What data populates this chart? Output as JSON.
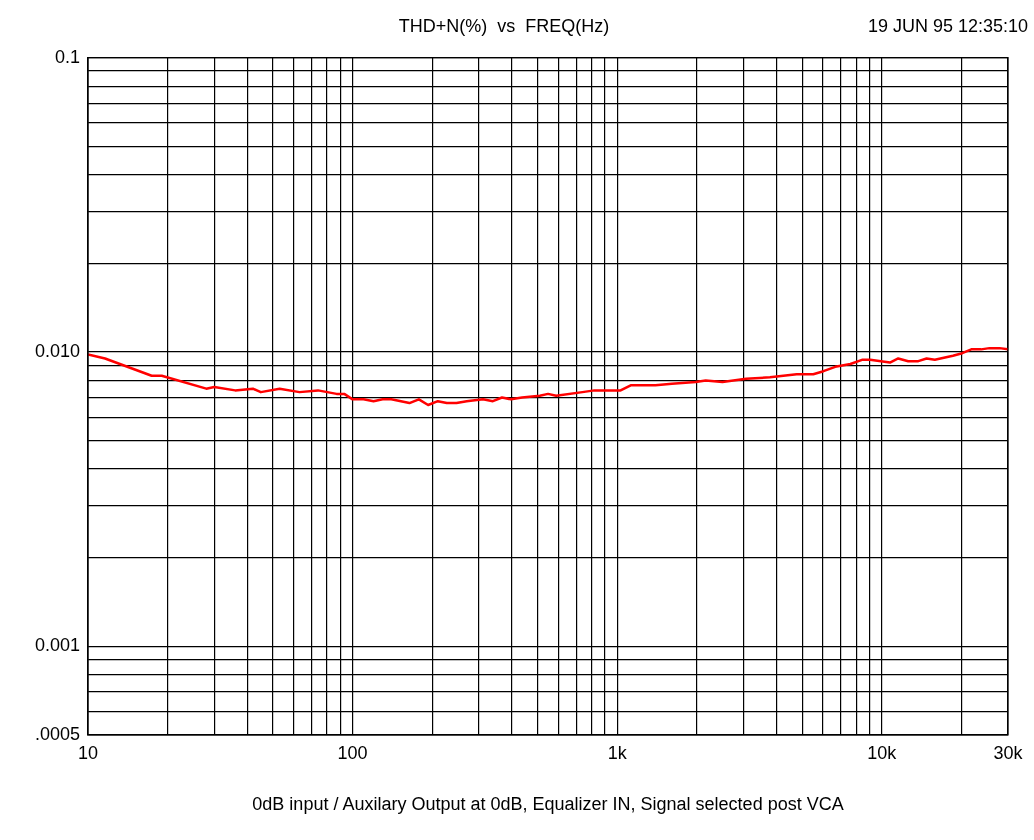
{
  "chart_data": {
    "type": "line",
    "title": "THD+N(%)  vs  FREQ(Hz)",
    "xlabel": "0dB input / Auxilary Output at 0dB, Equalizer IN, Signal selected post VCA",
    "annotations": [
      "19 JUN 95 12:35:10"
    ],
    "log": "xy",
    "grid": true,
    "legend": false,
    "marker": "none",
    "line_style": "solid",
    "xlim": [
      10,
      30000
    ],
    "ylim": [
      0.0005,
      0.1
    ],
    "xticks": [
      {
        "value": 10,
        "label": "10"
      },
      {
        "value": 20,
        "label": null
      },
      {
        "value": 30,
        "label": null
      },
      {
        "value": 40,
        "label": null
      },
      {
        "value": 50,
        "label": null
      },
      {
        "value": 60,
        "label": null
      },
      {
        "value": 70,
        "label": null
      },
      {
        "value": 80,
        "label": null
      },
      {
        "value": 90,
        "label": null
      },
      {
        "value": 100,
        "label": "100"
      },
      {
        "value": 200,
        "label": null
      },
      {
        "value": 300,
        "label": null
      },
      {
        "value": 400,
        "label": null
      },
      {
        "value": 500,
        "label": null
      },
      {
        "value": 600,
        "label": null
      },
      {
        "value": 700,
        "label": null
      },
      {
        "value": 800,
        "label": null
      },
      {
        "value": 900,
        "label": null
      },
      {
        "value": 1000,
        "label": "1k"
      },
      {
        "value": 2000,
        "label": null
      },
      {
        "value": 3000,
        "label": null
      },
      {
        "value": 4000,
        "label": null
      },
      {
        "value": 5000,
        "label": null
      },
      {
        "value": 6000,
        "label": null
      },
      {
        "value": 7000,
        "label": null
      },
      {
        "value": 8000,
        "label": null
      },
      {
        "value": 9000,
        "label": null
      },
      {
        "value": 10000,
        "label": "10k"
      },
      {
        "value": 20000,
        "label": null
      },
      {
        "value": 30000,
        "label": "30k"
      }
    ],
    "yticks": [
      {
        "value": 0.0005,
        "label": ".0005"
      },
      {
        "value": 0.0006,
        "label": null
      },
      {
        "value": 0.0007,
        "label": null
      },
      {
        "value": 0.0008,
        "label": null
      },
      {
        "value": 0.0009,
        "label": null
      },
      {
        "value": 0.001,
        "label": "0.001"
      },
      {
        "value": 0.002,
        "label": null
      },
      {
        "value": 0.003,
        "label": null
      },
      {
        "value": 0.004,
        "label": null
      },
      {
        "value": 0.005,
        "label": null
      },
      {
        "value": 0.006,
        "label": null
      },
      {
        "value": 0.007,
        "label": null
      },
      {
        "value": 0.008,
        "label": null
      },
      {
        "value": 0.009,
        "label": null
      },
      {
        "value": 0.01,
        "label": "0.010"
      },
      {
        "value": 0.02,
        "label": null
      },
      {
        "value": 0.03,
        "label": null
      },
      {
        "value": 0.04,
        "label": null
      },
      {
        "value": 0.05,
        "label": null
      },
      {
        "value": 0.06,
        "label": null
      },
      {
        "value": 0.07,
        "label": null
      },
      {
        "value": 0.08,
        "label": null
      },
      {
        "value": 0.09,
        "label": null
      },
      {
        "value": 0.1,
        "label": "0.1"
      }
    ],
    "series": [
      {
        "color": "#ff0000",
        "x": [
          10,
          11.6,
          17.4,
          19,
          28,
          30,
          36,
          42,
          45,
          53,
          63,
          74,
          87,
          93,
          100,
          110,
          120,
          130,
          140,
          164,
          178,
          193,
          210,
          227,
          247,
          270,
          311,
          339,
          367,
          397,
          437,
          510,
          548,
          588,
          739,
          820,
          1030,
          1125,
          1395,
          1610,
          1980,
          2160,
          2500,
          3070,
          3780,
          4770,
          5510,
          6020,
          6670,
          7610,
          8420,
          9040,
          10740,
          11540,
          12590,
          13740,
          14770,
          15870,
          18580,
          20140,
          21800,
          23760,
          25530,
          27860,
          30000
        ],
        "values": [
          0.0098,
          0.0095,
          0.0083,
          0.0083,
          0.0075,
          0.0076,
          0.0074,
          0.0075,
          0.0073,
          0.0075,
          0.0073,
          0.0074,
          0.0072,
          0.0072,
          0.0069,
          0.0069,
          0.0068,
          0.0069,
          0.0069,
          0.0067,
          0.0069,
          0.0066,
          0.0068,
          0.0067,
          0.0067,
          0.0068,
          0.0069,
          0.0068,
          0.007,
          0.0069,
          0.007,
          0.0071,
          0.0072,
          0.0071,
          0.0073,
          0.0074,
          0.0074,
          0.0077,
          0.0077,
          0.0078,
          0.0079,
          0.008,
          0.0079,
          0.0081,
          0.0082,
          0.0084,
          0.0084,
          0.0086,
          0.0089,
          0.0091,
          0.0094,
          0.0094,
          0.0092,
          0.0095,
          0.0093,
          0.0093,
          0.0095,
          0.0094,
          0.0097,
          0.0099,
          0.0102,
          0.0102,
          0.0103,
          0.0103,
          0.0102
        ]
      }
    ]
  }
}
